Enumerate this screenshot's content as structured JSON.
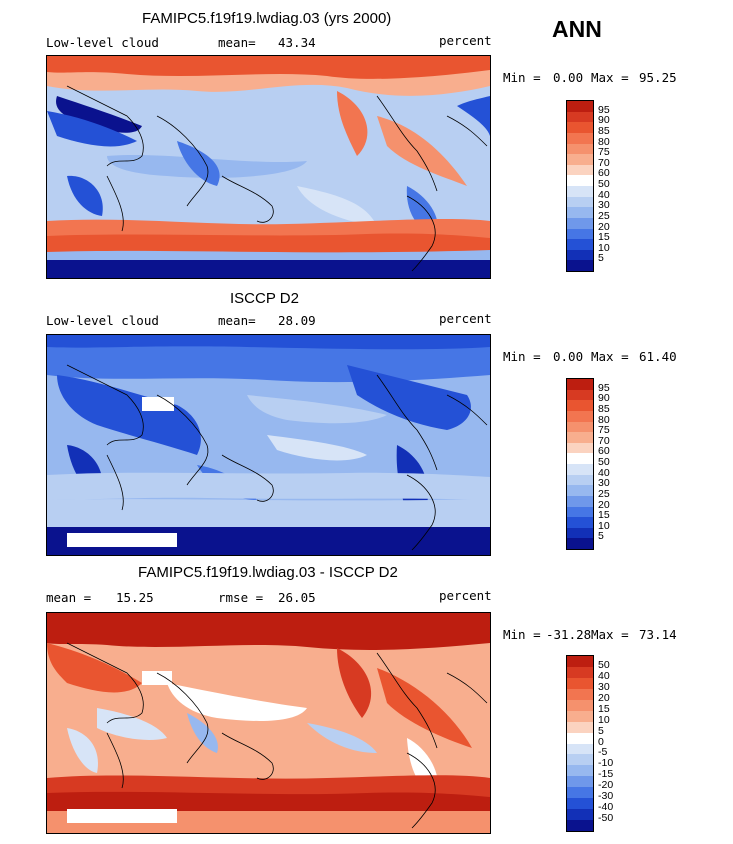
{
  "season": "ANN",
  "palette_main": {
    "colors": [
      "#bd1e10",
      "#d73a22",
      "#e95530",
      "#f27550",
      "#f5916d",
      "#f8ae8e",
      "#fbd3c0",
      "#ffffff",
      "#d7e4f7",
      "#b8cff2",
      "#97b8ef",
      "#6f98ea",
      "#4676e5",
      "#2451d6",
      "#1230b7",
      "#0a128e"
    ],
    "labels": [
      "95",
      "90",
      "85",
      "80",
      "75",
      "70",
      "60",
      "50",
      "40",
      "30",
      "25",
      "20",
      "15",
      "10",
      "5"
    ]
  },
  "palette_diff": {
    "colors": [
      "#bd1e10",
      "#d73a22",
      "#e95530",
      "#f27550",
      "#f5916d",
      "#f8ae8e",
      "#fbd3c0",
      "#ffffff",
      "#d7e4f7",
      "#b8cff2",
      "#97b8ef",
      "#6f98ea",
      "#4676e5",
      "#2451d6",
      "#1230b7",
      "#0a128e"
    ],
    "labels": [
      "50",
      "40",
      "30",
      "20",
      "15",
      "10",
      "5",
      "0",
      "-5",
      "-10",
      "-15",
      "-20",
      "-30",
      "-40",
      "-50"
    ]
  },
  "panels": [
    {
      "title": "FAMIPC5.f19f19.lwdiag.03 (yrs 2000)",
      "left_label": "Low-level cloud",
      "mean_label": "mean=",
      "mean_value": "43.34",
      "units": "percent",
      "min_label": "Min =",
      "min_value": "0.00",
      "max_label": "Max =",
      "max_value": "95.25",
      "palette": "main"
    },
    {
      "title": "ISCCP D2",
      "left_label": "Low-level cloud",
      "mean_label": "mean=",
      "mean_value": "28.09",
      "units": "percent",
      "min_label": "Min =",
      "min_value": "0.00",
      "max_label": "Max =",
      "max_value": "61.40",
      "palette": "main"
    },
    {
      "title": "FAMIPC5.f19f19.lwdiag.03 - ISCCP D2",
      "left_label": "mean =",
      "left_value": "15.25",
      "mean_label": "rmse =",
      "mean_value": "26.05",
      "units": "percent",
      "min_label": "Min =",
      "min_value": "-31.28",
      "max_label": "Max =",
      "max_value": "73.14",
      "palette": "diff"
    }
  ]
}
